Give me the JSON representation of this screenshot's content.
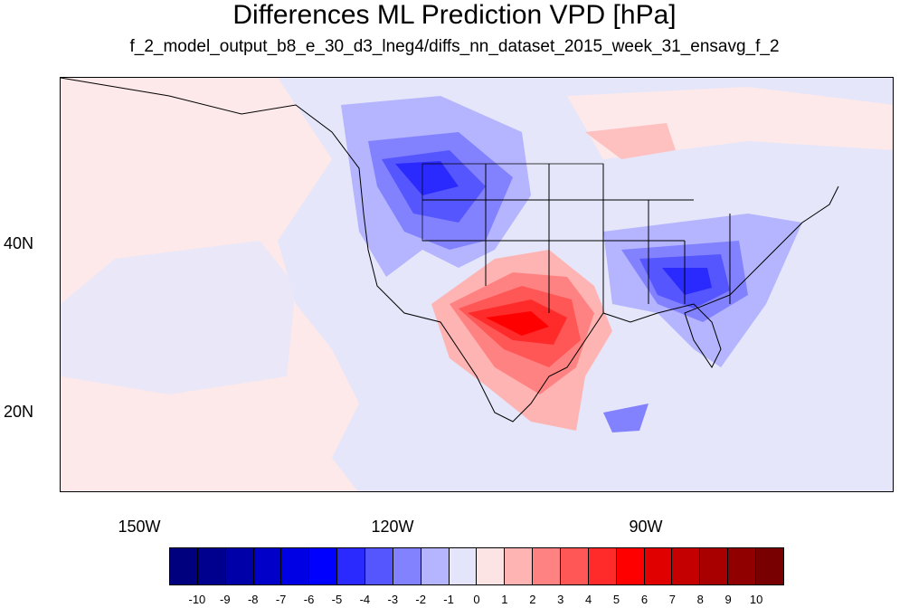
{
  "title": "Differences ML Prediction VPD [hPa]",
  "subtitle": "f_2_model_output_b8_e_30_d3_lneg4/diffs_nn_dataset_2015_week_31_ensavg_f_2",
  "axes": {
    "lat_labels": [
      "40N",
      "20N"
    ],
    "lon_labels": [
      "150W",
      "120W",
      "90W"
    ]
  },
  "colorbar": {
    "labels": [
      "-10",
      "-9",
      "-8",
      "-7",
      "-6",
      "-5",
      "-4",
      "-3",
      "-2",
      "-1",
      "0",
      "1",
      "2",
      "3",
      "4",
      "5",
      "6",
      "7",
      "8",
      "9",
      "10"
    ],
    "colors": [
      "#00007f",
      "#00008f",
      "#0000a8",
      "#0000c8",
      "#0000e4",
      "#0000ff",
      "#2a2aff",
      "#5656ff",
      "#8282ff",
      "#b4b4ff",
      "#e4e4fb",
      "#fde4e4",
      "#ffb4b4",
      "#ff8282",
      "#ff5656",
      "#ff2a2a",
      "#ff0000",
      "#e00000",
      "#c40000",
      "#a80000",
      "#900000",
      "#780000"
    ]
  },
  "map": {
    "background_color": "#fde9e9",
    "regions": "Differences of VPD over North America, week 31 of 2015"
  }
}
